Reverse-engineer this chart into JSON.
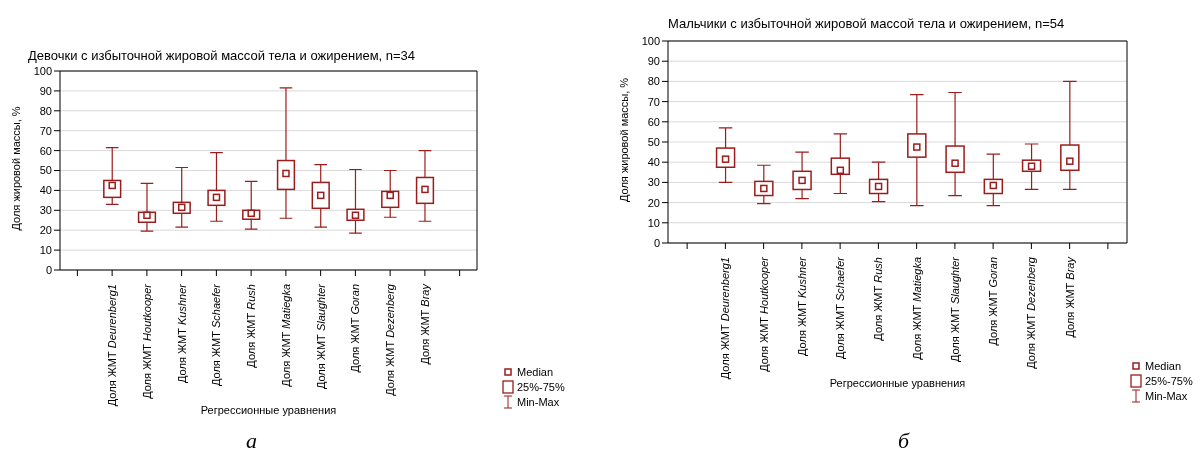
{
  "chart_data": [
    {
      "type": "box",
      "title": "Девочки с избыточной жировой массой тела и ожирением, n=34",
      "xlabel": "Регрессионные уравнения",
      "ylabel": "Доля жировой массы, %",
      "color": "#9b1c1c",
      "categories": [
        null,
        "Доля ЖМТ Deurenberg1",
        "Доля ЖМТ Houtkooper",
        "Доля ЖМТ Kushner",
        "Доля ЖМТ Schaefer",
        "Доля ЖМТ Rush",
        "Доля ЖМТ Matiegka",
        "Доля ЖМТ Slaughter",
        "Доля ЖМТ Goran",
        "Доля ЖМТ Dezenberg",
        "Доля ЖМТ Bray",
        null
      ],
      "boxes": [
        null,
        {
          "low": 33,
          "q1": 36.5,
          "median": 42.5,
          "q3": 45,
          "high": 61.5
        },
        {
          "low": 19.5,
          "q1": 24,
          "median": 27.5,
          "q3": 29,
          "high": 43.5
        },
        {
          "low": 21.5,
          "q1": 28.5,
          "median": 31.5,
          "q3": 34,
          "high": 51.5
        },
        {
          "low": 24.5,
          "q1": 32.5,
          "median": 36.5,
          "q3": 40,
          "high": 59
        },
        {
          "low": 20.5,
          "q1": 25.5,
          "median": 28.5,
          "q3": 30,
          "high": 44.5
        },
        {
          "low": 26,
          "q1": 40.5,
          "median": 48.5,
          "q3": 55,
          "high": 91.5
        },
        {
          "low": 21.5,
          "q1": 31,
          "median": 37.5,
          "q3": 44,
          "high": 53
        },
        {
          "low": 18.5,
          "q1": 25,
          "median": 27.5,
          "q3": 30.5,
          "high": 50.5
        },
        {
          "low": 26.5,
          "q1": 31.5,
          "median": 37.5,
          "q3": 39.5,
          "high": 50
        },
        {
          "low": 24.5,
          "q1": 33.5,
          "median": 40.5,
          "q3": 46.5,
          "high": 60
        },
        null
      ],
      "ylim": [
        0,
        100
      ],
      "yticks": [
        0,
        10,
        20,
        30,
        40,
        50,
        60,
        70,
        80,
        90,
        100
      ],
      "grid": "y",
      "annotations": [
        "Median",
        "25%-75%",
        "Min-Max",
        "а"
      ]
    },
    {
      "type": "box",
      "title": "Мальчики с избыточной жировой массой тела и ожирением, n=54",
      "xlabel": "Регрессионные уравнения",
      "ylabel": "Доля жировой массы, %",
      "color": "#9b1c1c",
      "categories": [
        null,
        "Доля ЖМТ Deurenberg1",
        "Доля ЖМТ Houtkooper",
        "Доля ЖМТ Kushner",
        "Доля ЖМТ Schaefer",
        "Доля ЖМТ Rush",
        "Доля ЖМТ Matiegka",
        "Доля ЖМТ Slaughter",
        "Доля ЖМТ Goran",
        "Доля ЖМТ Dezenberg",
        "Доля ЖМТ Bray",
        null
      ],
      "boxes": [
        null,
        {
          "low": 30,
          "q1": 37.5,
          "median": 41.5,
          "q3": 47,
          "high": 57
        },
        {
          "low": 19.5,
          "q1": 23.5,
          "median": 27,
          "q3": 30.5,
          "high": 38.5
        },
        {
          "low": 22,
          "q1": 26.5,
          "median": 31,
          "q3": 35.5,
          "high": 45
        },
        {
          "low": 24.5,
          "q1": 34,
          "median": 36,
          "q3": 42,
          "high": 54
        },
        {
          "low": 20.5,
          "q1": 24.5,
          "median": 28,
          "q3": 31.5,
          "high": 40
        },
        {
          "low": 18.5,
          "q1": 42.5,
          "median": 47.5,
          "q3": 54,
          "high": 73.5
        },
        {
          "low": 23.5,
          "q1": 35,
          "median": 39.5,
          "q3": 48,
          "high": 74.5
        },
        {
          "low": 18.5,
          "q1": 24.5,
          "median": 28.5,
          "q3": 31.5,
          "high": 44
        },
        {
          "low": 26.5,
          "q1": 35.5,
          "median": 38,
          "q3": 41,
          "high": 49
        },
        {
          "low": 26.5,
          "q1": 36,
          "median": 40.5,
          "q3": 48.5,
          "high": 80
        },
        null
      ],
      "ylim": [
        0,
        100
      ],
      "yticks": [
        0,
        10,
        20,
        30,
        40,
        50,
        60,
        70,
        80,
        90,
        100
      ],
      "grid": "y",
      "annotations": [
        "Median",
        "25%-75%",
        "Min-Max",
        "б"
      ]
    }
  ]
}
